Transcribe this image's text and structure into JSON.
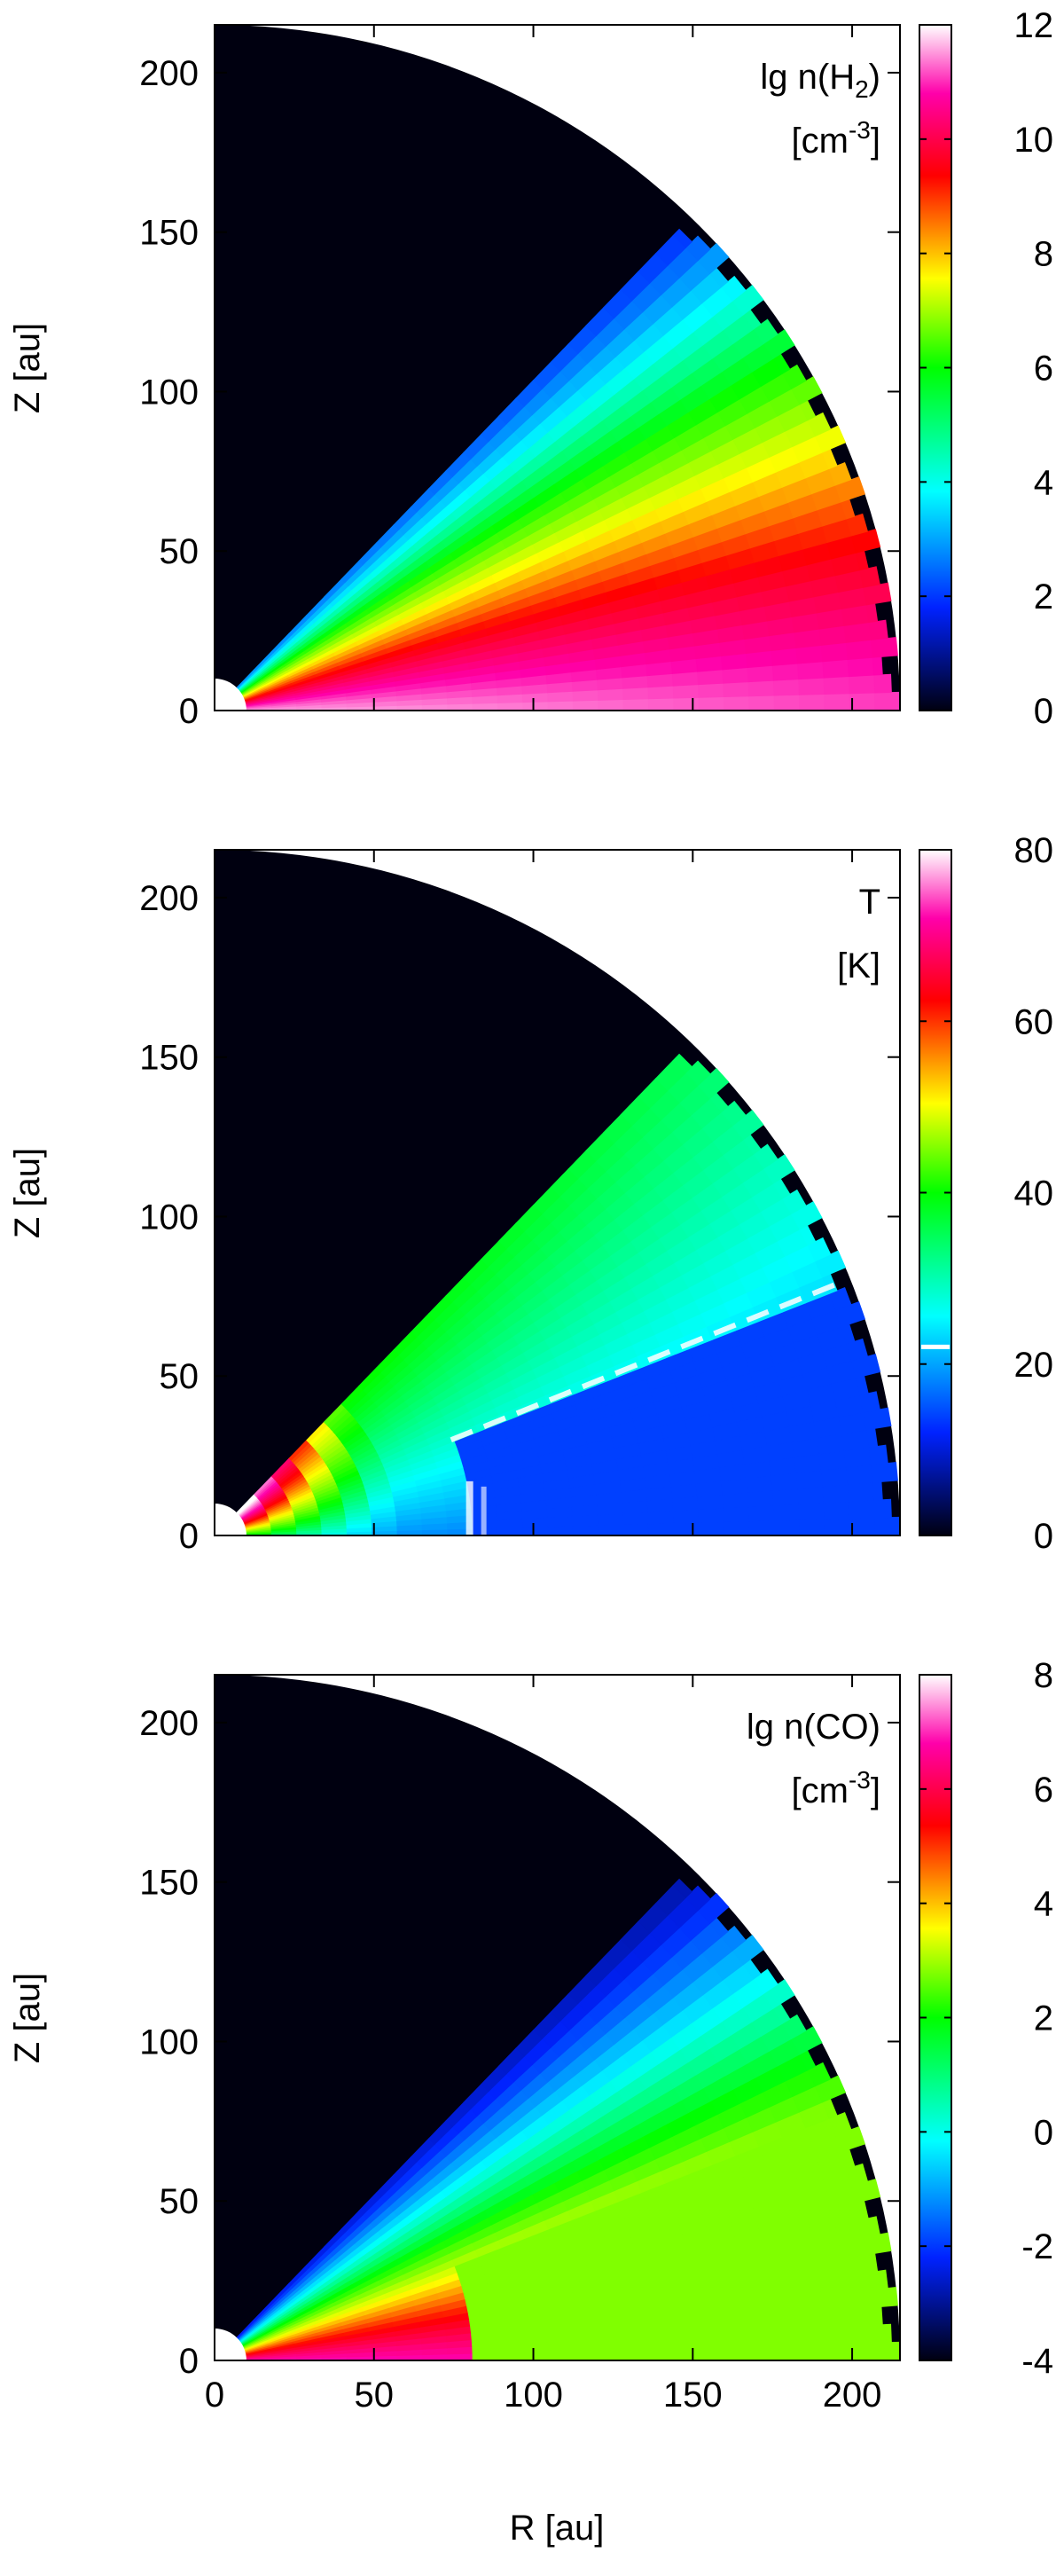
{
  "chart_data": [
    {
      "type": "heatmap",
      "title": "",
      "xlabel": "",
      "ylabel": "Z [au]",
      "xlim": [
        0,
        215
      ],
      "ylim": [
        0,
        215
      ],
      "yticks": [
        0,
        50,
        100,
        150,
        200
      ],
      "ytick_labels": [
        "0",
        "50",
        "100",
        "150",
        "200"
      ],
      "xticks": [
        0,
        50,
        100,
        150,
        200
      ],
      "xtick_labels": [],
      "quantity_label": [
        "lg n(H",
        "2",
        ")",
        "[cm",
        "-3",
        "]"
      ],
      "colorbar": {
        "min": 0,
        "max": 12,
        "ticks": [
          0,
          2,
          4,
          6,
          8,
          10,
          12
        ],
        "tick_labels": [
          "0",
          "2",
          "4",
          "6",
          "8",
          "10",
          "12"
        ]
      },
      "colormap": [
        "#000010",
        "#0022ff",
        "#00ffff",
        "#00ff00",
        "#ffff00",
        "#ff0000",
        "#ff00aa",
        "#ffffff"
      ],
      "disk": {
        "outer_radius_au": 215,
        "inner_radius_au": 10,
        "atmosphere_edge_angle_deg": 46,
        "midplane_value": 11.5,
        "surface_value": 2.5,
        "background_value": 0
      }
    },
    {
      "type": "heatmap",
      "title": "",
      "xlabel": "",
      "ylabel": "Z [au]",
      "xlim": [
        0,
        215
      ],
      "ylim": [
        0,
        215
      ],
      "yticks": [
        0,
        50,
        100,
        150,
        200
      ],
      "ytick_labels": [
        "0",
        "50",
        "100",
        "150",
        "200"
      ],
      "xticks": [
        0,
        50,
        100,
        150,
        200
      ],
      "xtick_labels": [],
      "quantity_label": [
        "T",
        "[K]"
      ],
      "colorbar": {
        "min": 0,
        "max": 80,
        "ticks": [
          0,
          20,
          40,
          60,
          80
        ],
        "tick_labels": [
          "0",
          "20",
          "40",
          "60",
          "80"
        ],
        "contour_value": 22
      },
      "colormap": [
        "#000010",
        "#0022ff",
        "#00ffff",
        "#00ff00",
        "#ffff00",
        "#ff0000",
        "#ff00aa",
        "#ffffff"
      ],
      "disk": {
        "outer_radius_au": 215,
        "inner_radius_au": 10,
        "atmosphere_edge_angle_deg": 46,
        "cold_layer_angle_deg": 22,
        "cold_region_value": 13,
        "contour_value_K": 22
      }
    },
    {
      "type": "heatmap",
      "title": "",
      "xlabel": "R [au]",
      "ylabel": "Z [au]",
      "xlim": [
        0,
        215
      ],
      "ylim": [
        0,
        215
      ],
      "yticks": [
        0,
        50,
        100,
        150,
        200
      ],
      "ytick_labels": [
        "0",
        "50",
        "100",
        "150",
        "200"
      ],
      "xticks": [
        0,
        50,
        100,
        150,
        200
      ],
      "xtick_labels": [
        "0",
        "50",
        "100",
        "150",
        "200"
      ],
      "quantity_label": [
        "lg n(CO)",
        "[cm",
        "-3",
        "]"
      ],
      "colorbar": {
        "min": -4,
        "max": 8,
        "ticks": [
          -4,
          -2,
          0,
          2,
          4,
          6,
          8
        ],
        "tick_labels": [
          "-4",
          "-2",
          "0",
          "2",
          "4",
          "6",
          "8"
        ]
      },
      "colormap": [
        "#000010",
        "#0022ff",
        "#00ffff",
        "#00ff00",
        "#ffff00",
        "#ff0000",
        "#ff00aa",
        "#ffffff"
      ],
      "disk": {
        "outer_radius_au": 215,
        "inner_radius_au": 10,
        "atmosphere_edge_angle_deg": 46,
        "freeze_out_radius_au": 83,
        "freeze_out_angle_deg": 22,
        "inner_midplane_value": 6.5,
        "depleted_value": 2.0,
        "background_value": -4
      }
    }
  ]
}
